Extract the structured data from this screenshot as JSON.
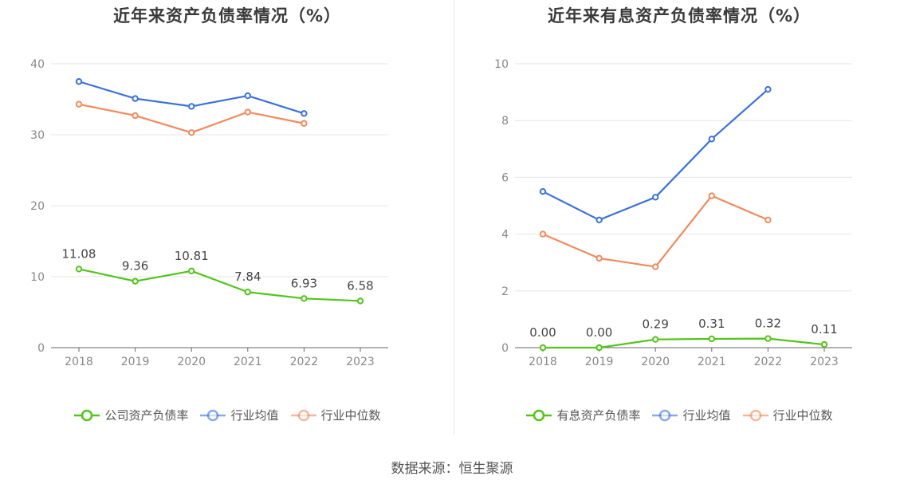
{
  "source": "数据来源：恒生聚源",
  "chart_data": [
    {
      "type": "line",
      "title": "近年来资产负债率情况（%）",
      "categories": [
        "2018",
        "2019",
        "2020",
        "2021",
        "2022",
        "2023"
      ],
      "ylim": [
        0,
        40
      ],
      "yticks": [
        0,
        10,
        20,
        30,
        40
      ],
      "grid": true,
      "legend_position": "bottom",
      "series": [
        {
          "name": "公司资产负债率",
          "color": "#52c41a",
          "values": [
            11.08,
            9.36,
            10.81,
            7.84,
            6.93,
            6.58
          ],
          "labels": [
            "11.08",
            "9.36",
            "10.81",
            "7.84",
            "6.93",
            "6.58"
          ]
        },
        {
          "name": "行业均值",
          "color": "#3b72d9",
          "values": [
            37.5,
            35.1,
            34.0,
            35.5,
            33.0,
            null
          ]
        },
        {
          "name": "行业中位数",
          "color": "#f08a5d",
          "values": [
            34.3,
            32.7,
            30.3,
            33.2,
            31.6,
            null
          ]
        }
      ]
    },
    {
      "type": "line",
      "title": "近年来有息资产负债率情况（%）",
      "categories": [
        "2018",
        "2019",
        "2020",
        "2021",
        "2022",
        "2023"
      ],
      "ylim": [
        0,
        10
      ],
      "yticks": [
        0,
        2,
        4,
        6,
        8,
        10
      ],
      "grid": true,
      "legend_position": "bottom",
      "series": [
        {
          "name": "有息资产负债率",
          "color": "#52c41a",
          "values": [
            0.0,
            0.0,
            0.29,
            0.31,
            0.32,
            0.11
          ],
          "labels": [
            "0.00",
            "0.00",
            "0.29",
            "0.31",
            "0.32",
            "0.11"
          ]
        },
        {
          "name": "行业均值",
          "color": "#3b72d9",
          "values": [
            5.5,
            4.5,
            5.3,
            7.35,
            9.1,
            null
          ]
        },
        {
          "name": "行业中位数",
          "color": "#f08a5d",
          "values": [
            4.0,
            3.15,
            2.85,
            5.35,
            4.5,
            null
          ]
        }
      ]
    }
  ]
}
